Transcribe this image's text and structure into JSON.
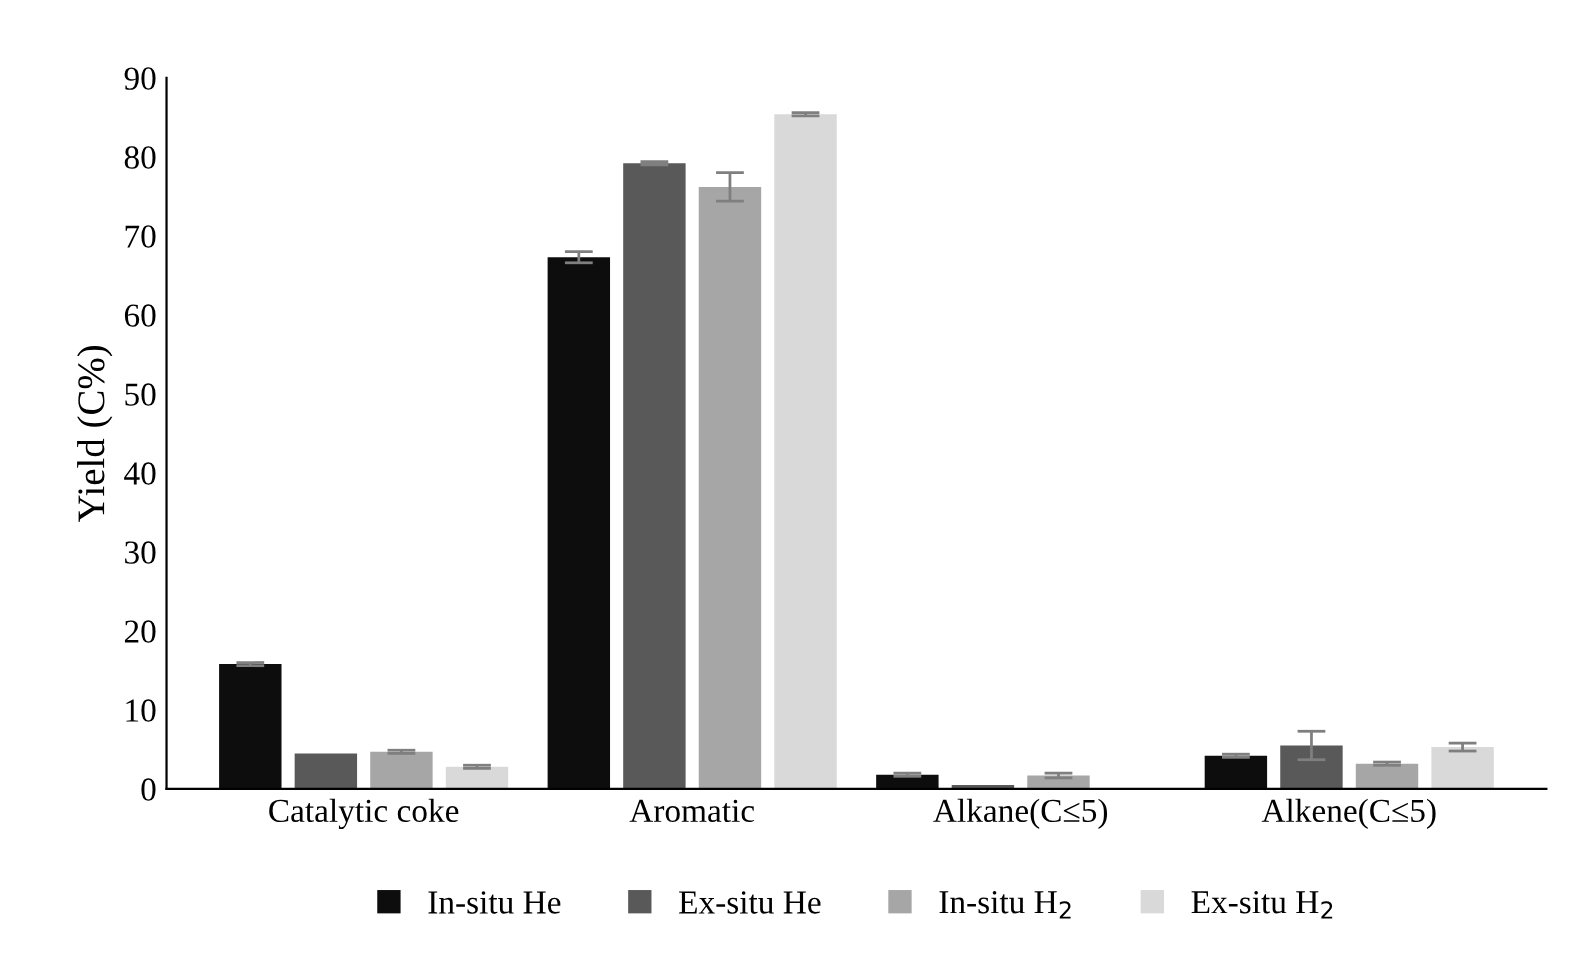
{
  "chart_data": {
    "type": "bar",
    "ylabel": "Yield (C%)",
    "categories": [
      "Catalytic coke",
      "Aromatic",
      "Alkane(C≤5)",
      "Alkene(C≤5)"
    ],
    "series": [
      {
        "name": "In-situ He",
        "color": "#0d0d0d",
        "values": [
          15.8,
          67.3,
          1.8,
          4.2
        ],
        "errors": [
          0.2,
          0.7,
          0.2,
          0.2
        ]
      },
      {
        "name": "Ex-situ He",
        "color": "#595959",
        "values": [
          4.5,
          79.2,
          0.5,
          5.5
        ],
        "errors": [
          null,
          0.2,
          null,
          1.8
        ]
      },
      {
        "name": "In-situ H$_{2}$",
        "color": "#a6a6a6",
        "values": [
          4.7,
          76.2,
          1.7,
          3.2
        ],
        "errors": [
          0.2,
          1.8,
          0.3,
          0.2
        ]
      },
      {
        "name": "Ex-situ H$_{2}$",
        "color": "#d9d9d9",
        "values": [
          2.8,
          85.4,
          null,
          5.3
        ],
        "errors": [
          0.2,
          0.2,
          null,
          0.5
        ]
      }
    ],
    "ylim": [
      0,
      90
    ],
    "yticks": [
      0,
      10,
      20,
      30,
      40,
      50,
      60,
      70,
      80,
      90
    ],
    "grid": false,
    "legend": "bottom"
  }
}
